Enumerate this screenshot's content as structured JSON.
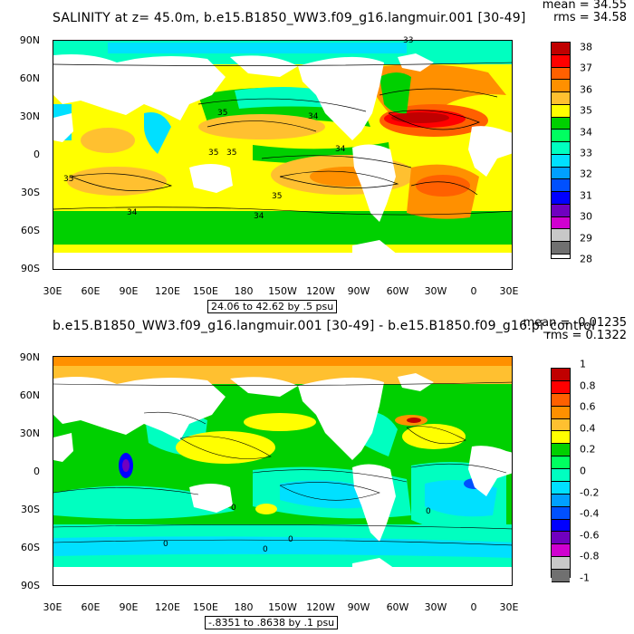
{
  "top": {
    "title": "SALINITY at z=  45.0m, b.e15.B1850_WW3.f09_g16.langmuir.001 [30-49]",
    "mean": "mean = 34.55",
    "rms": "rms = 34.58",
    "range": "24.06 to 42.62 by .5 psu",
    "lat_labels": [
      "90N",
      "60N",
      "30N",
      "0",
      "30S",
      "60S",
      "90S"
    ],
    "lon_labels": [
      "30E",
      "60E",
      "90E",
      "120E",
      "150E",
      "180",
      "150W",
      "120W",
      "90W",
      "60W",
      "30W",
      "0",
      "30E"
    ],
    "contour_labels": [
      "35",
      "34",
      "35",
      "35",
      "35",
      "34",
      "35",
      "34",
      "34",
      "33"
    ],
    "colorbar": {
      "labels": [
        "38",
        "37",
        "36",
        "35",
        "34",
        "33",
        "32",
        "31",
        "30",
        "29",
        "28"
      ],
      "colors": [
        "#c00000",
        "#ff0000",
        "#ff6000",
        "#ff9000",
        "#ffc030",
        "#ffff00",
        "#00d000",
        "#00ff60",
        "#00ffc0",
        "#00e0ff",
        "#00a0ff",
        "#0050ff",
        "#0000ff",
        "#7000c0",
        "#d000d0",
        "#c8c8c8",
        "#707070"
      ]
    }
  },
  "bottom": {
    "title": "b.e15.B1850_WW3.f09_g16.langmuir.001 [30-49] - b.e15.B1850.f09_g16.pi_control",
    "mean": "mean = -0.01235",
    "rms": "rms = 0.1322",
    "range": "-.8351 to .8638 by .1 psu",
    "lat_labels": [
      "90N",
      "60N",
      "30N",
      "0",
      "30S",
      "60S",
      "90S"
    ],
    "lon_labels": [
      "30E",
      "60E",
      "90E",
      "120E",
      "150E",
      "180",
      "150W",
      "120W",
      "90W",
      "60W",
      "30W",
      "0",
      "30E"
    ],
    "contour_labels": [
      "0",
      "0",
      "0",
      "0",
      "0"
    ],
    "colorbar": {
      "labels": [
        "1",
        "0.8",
        "0.6",
        "0.4",
        "0.2",
        "0",
        "-0.2",
        "-0.4",
        "-0.6",
        "-0.8",
        "-1"
      ],
      "colors": [
        "#c00000",
        "#ff0000",
        "#ff6000",
        "#ff9000",
        "#ffc030",
        "#ffff00",
        "#00d000",
        "#00ff60",
        "#00ffc0",
        "#00e0ff",
        "#00a0ff",
        "#0050ff",
        "#0000ff",
        "#7000c0",
        "#d000d0",
        "#c8c8c8",
        "#707070"
      ]
    }
  }
}
